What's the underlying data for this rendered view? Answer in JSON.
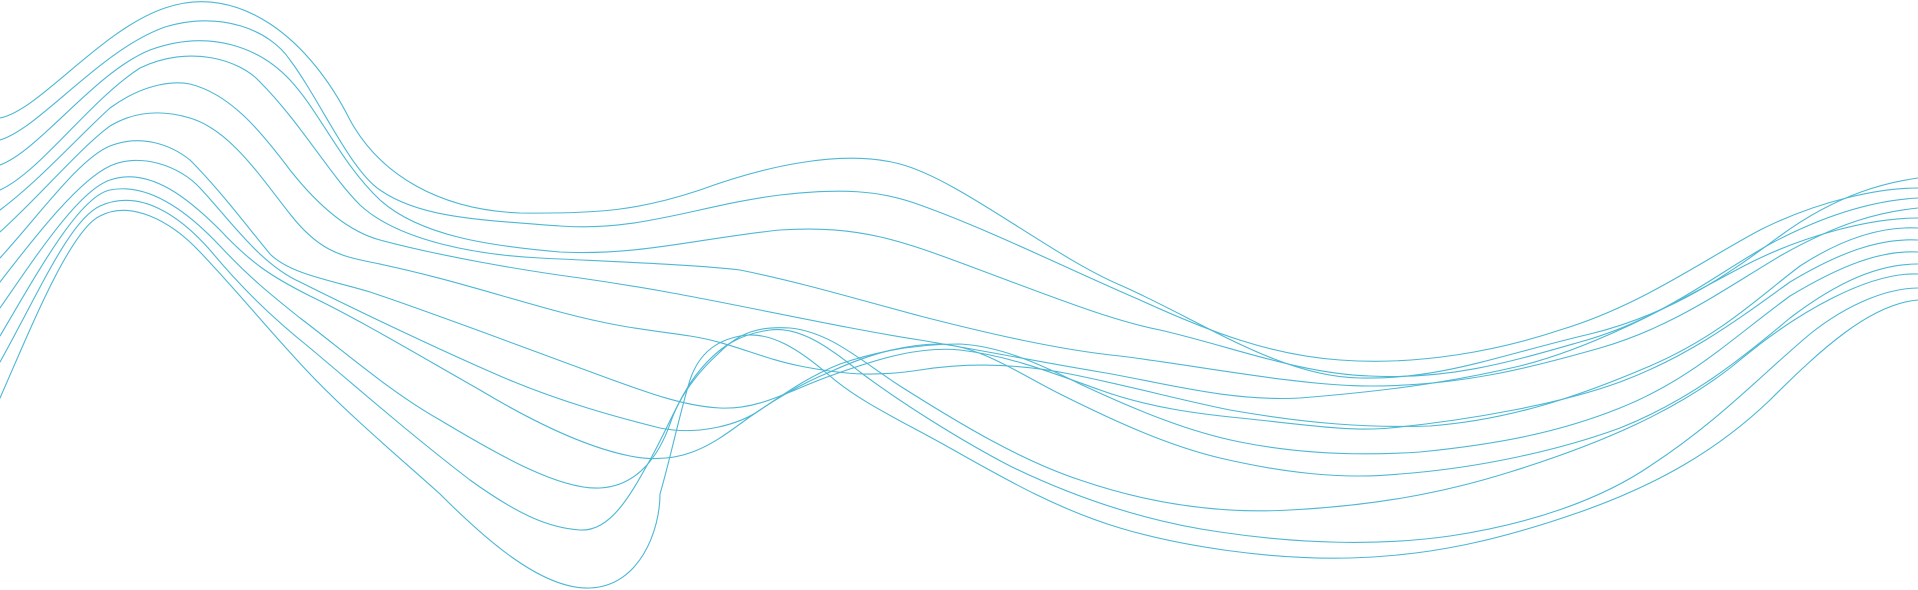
{
  "artwork": {
    "name": "wave-lines-decoration",
    "line_color": "#4db8d4",
    "background": "#ffffff",
    "line_count": 12
  }
}
